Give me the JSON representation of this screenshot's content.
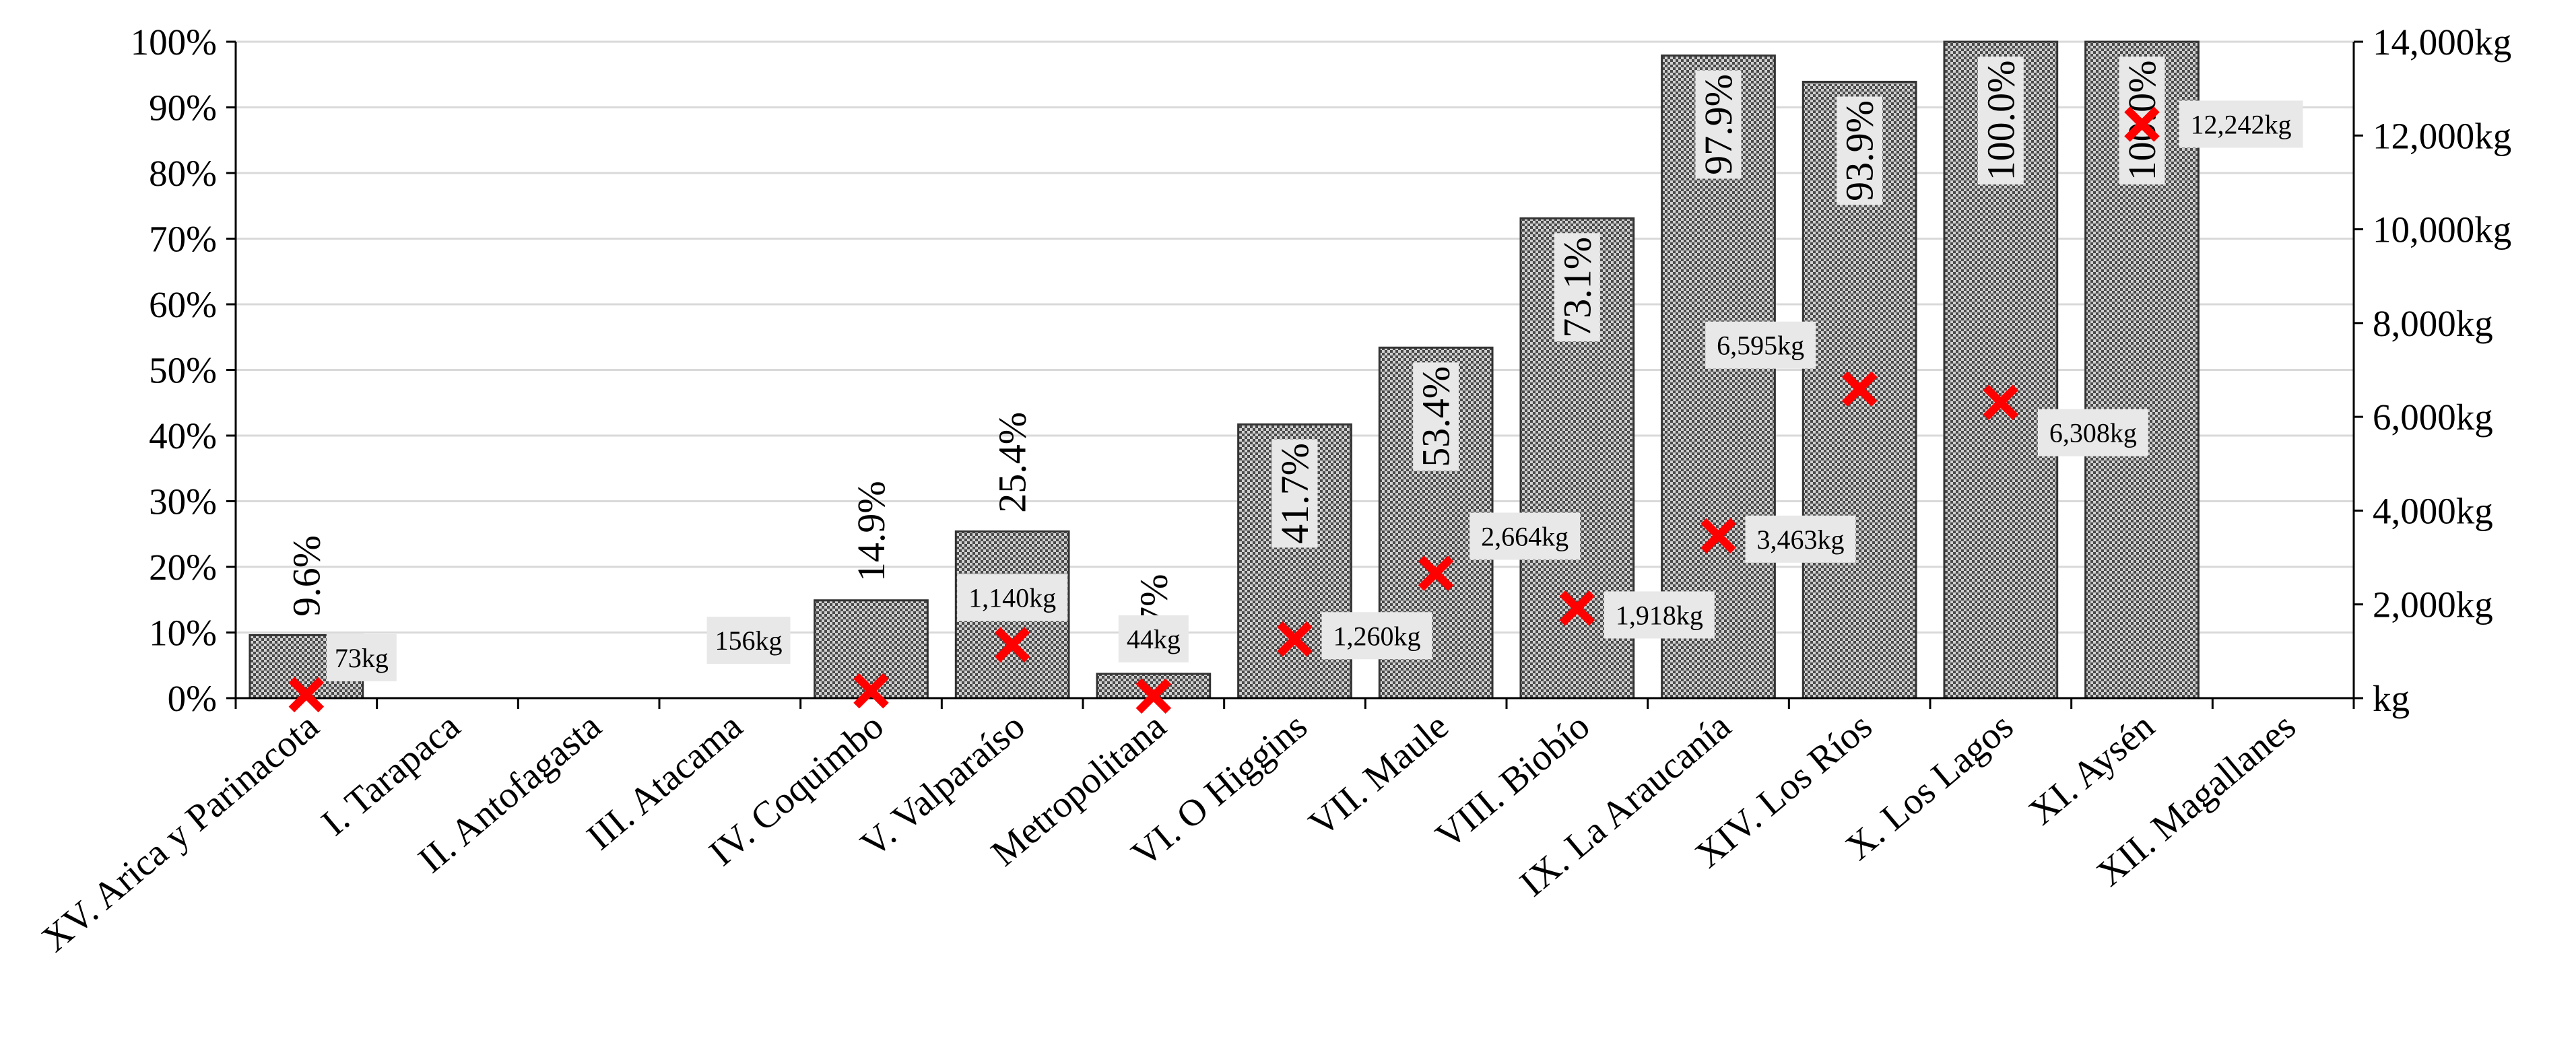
{
  "chart_data": {
    "type": "bar",
    "categories": [
      "XV. Arica y Parinacota",
      "I. Tarapaca",
      "II. Antofagasta",
      "III. Atacama",
      "IV. Coquimbo",
      "V. Valparaíso",
      "Metropolitana",
      "VI. O Higgins",
      "VII. Maule",
      "VIII. Biobío",
      "IX. La Araucanía",
      "XIV. Los Ríos",
      "X. Los Lagos",
      "XI. Aysén",
      "XII. Magallanes"
    ],
    "series": [
      {
        "axis": "left",
        "type": "bar",
        "values": [
          9.6,
          0,
          0,
          0,
          14.9,
          25.4,
          3.7,
          41.7,
          53.4,
          73.1,
          97.9,
          93.9,
          100.0,
          100.0,
          0
        ],
        "labels": [
          "9.6%",
          "",
          "",
          "",
          "14.9%",
          "25.4%",
          "3.7%",
          "41.7%",
          "53.4%",
          "73.1%",
          "97.9%",
          "93.9%",
          "100.0%",
          "100.0%",
          ""
        ]
      },
      {
        "axis": "right",
        "type": "scatter",
        "marker": "x",
        "color": "#ff0000",
        "values": [
          73,
          null,
          null,
          null,
          156,
          1140,
          44,
          1260,
          2664,
          1918,
          3463,
          6595,
          6308,
          12242,
          null
        ],
        "labels": [
          "73kg",
          "",
          "",
          "",
          "156kg",
          "1,140kg",
          "44kg",
          "1,260kg",
          "2,664kg",
          "1,918kg",
          "3,463kg",
          "6,595kg",
          "6,308kg",
          "12,242kg",
          ""
        ]
      }
    ],
    "y_left": {
      "ylim": [
        0,
        100
      ],
      "ticks": [
        "0%",
        "10%",
        "20%",
        "30%",
        "40%",
        "50%",
        "60%",
        "70%",
        "80%",
        "90%",
        "100%"
      ]
    },
    "y_right": {
      "ylim": [
        0,
        14000
      ],
      "ticks": [
        "kg",
        "2,000kg",
        "4,000kg",
        "6,000kg",
        "8,000kg",
        "10,000kg",
        "12,000kg",
        "14,000kg"
      ]
    },
    "grid": true,
    "legend": "none",
    "colors": {
      "bar_fill": "#999999",
      "bar_stroke": "#333333",
      "marker": "#ff0000",
      "label_box": "#e8e8e8",
      "grid": "#d9d9d9"
    }
  }
}
